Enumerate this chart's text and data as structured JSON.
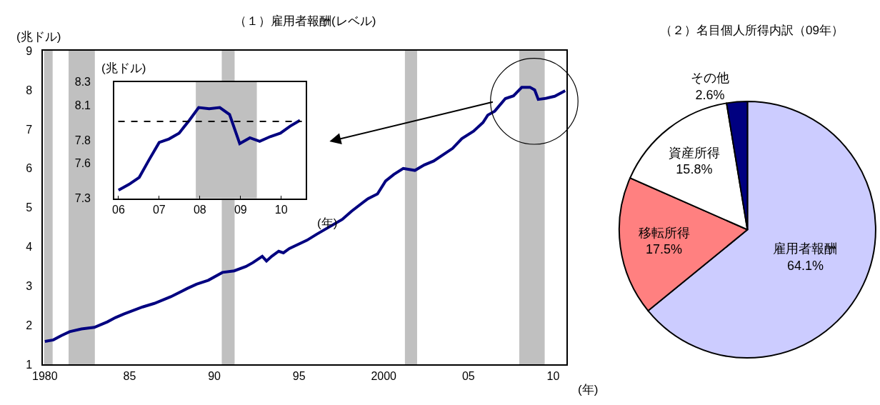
{
  "chart_data": [
    {
      "type": "line",
      "title": "（１）雇用者報酬(レベル)",
      "ylabel": "(兆ドル)",
      "xlabel": "(年)",
      "x": [
        1980.0,
        1980.5,
        1980.98,
        1981.46,
        1982.16,
        1982.92,
        1983.69,
        1984.17,
        1984.66,
        1985.77,
        1986.46,
        1987.43,
        1988.4,
        1988.95,
        1989.65,
        1990.48,
        1991.17,
        1991.86,
        1992.28,
        1992.83,
        1993.08,
        1993.39,
        1993.8,
        1994.08,
        1994.43,
        1995.47,
        1996.03,
        1997.55,
        1998.1,
        1999.07,
        1999.63,
        2000.11,
        2000.6,
        2001.15,
        2001.84,
        2002.4,
        2002.95,
        2004.06,
        2004.61,
        2005.3,
        2005.86,
        2006.14,
        2006.55,
        2007.18,
        2007.66,
        2008.15,
        2008.63,
        2008.91,
        2009.12,
        2009.6,
        2010.09,
        2010.71
      ],
      "series": [
        {
          "color": "#000080",
          "values": [
            1.59,
            1.63,
            1.74,
            1.84,
            1.91,
            1.95,
            2.09,
            2.2,
            2.29,
            2.47,
            2.56,
            2.73,
            2.94,
            3.05,
            3.15,
            3.35,
            3.39,
            3.5,
            3.6,
            3.76,
            3.64,
            3.76,
            3.89,
            3.85,
            3.96,
            4.17,
            4.32,
            4.7,
            4.91,
            5.23,
            5.35,
            5.68,
            5.85,
            6.0,
            5.95,
            6.09,
            6.19,
            6.51,
            6.76,
            6.95,
            7.17,
            7.36,
            7.46,
            7.78,
            7.85,
            8.07,
            8.07,
            8.0,
            7.76,
            7.79,
            7.84,
            7.98
          ]
        }
      ],
      "xlim": [
        1979.9,
        2010.8
      ],
      "xticks": [
        1980,
        {
          "value": 1985,
          "label": "85"
        },
        {
          "value": 1990,
          "label": "90"
        },
        {
          "value": 1995,
          "label": "95"
        },
        2000,
        {
          "value": 2005,
          "label": "05"
        },
        {
          "value": 2010,
          "label": "10"
        }
      ],
      "ylim": [
        1,
        9
      ],
      "yticks": [
        1,
        2,
        3,
        4,
        5,
        6,
        7,
        8,
        9
      ],
      "bands": [
        {
          "axis": "x",
          "from": 1979.95,
          "to": 1980.46,
          "color": "#c0c0c0"
        },
        {
          "axis": "x",
          "from": 1981.4,
          "to": 1982.95,
          "color": "#c0c0c0"
        },
        {
          "axis": "x",
          "from": 1990.44,
          "to": 1991.2,
          "color": "#c0c0c0"
        },
        {
          "axis": "x",
          "from": 2001.25,
          "to": 2001.97,
          "color": "#c0c0c0"
        },
        {
          "axis": "x",
          "from": 2008.0,
          "to": 2009.5,
          "color": "#c0c0c0"
        }
      ],
      "grid": false
    },
    {
      "type": "line",
      "ylabel": "(兆ドル)",
      "xlabel": "(年)",
      "x": [
        2006.0,
        2006.26,
        2006.51,
        2006.75,
        2007.0,
        2007.24,
        2007.49,
        2007.74,
        2007.97,
        2008.23,
        2008.49,
        2008.73,
        2008.98,
        2009.23,
        2009.47,
        2009.73,
        2009.98,
        2010.22,
        2010.46
      ],
      "series": [
        {
          "color": "#000080",
          "values": [
            7.37,
            7.42,
            7.48,
            7.63,
            7.78,
            7.81,
            7.86,
            7.97,
            8.08,
            8.07,
            8.08,
            8.02,
            7.77,
            7.82,
            7.79,
            7.83,
            7.86,
            7.92,
            7.97
          ]
        }
      ],
      "xlim": [
        2005.9,
        2010.6
      ],
      "xticks": [
        {
          "value": 2006,
          "label": "06"
        },
        {
          "value": 2007,
          "label": "07"
        },
        {
          "value": 2008,
          "label": "08"
        },
        {
          "value": 2009,
          "label": "09"
        },
        {
          "value": 2010,
          "label": "10"
        }
      ],
      "ylim": [
        7.3,
        8.3
      ],
      "yticks": [
        7.3,
        7.6,
        7.8,
        8.1,
        8.3
      ],
      "bands": [
        {
          "axis": "x",
          "from": 2007.9,
          "to": 2009.4,
          "color": "#c0c0c0"
        }
      ],
      "ref_lines": [
        {
          "axis": "y",
          "value": 7.96,
          "color": "#000000",
          "line_style": "dashed"
        }
      ],
      "grid": false
    },
    {
      "type": "pie",
      "title": "（２）名目個人所得内訳（09年）",
      "categories": [
        "雇用者報酬",
        "移転所得",
        "資産所得",
        "その他"
      ],
      "values": [
        64.1,
        17.5,
        15.8,
        2.6
      ],
      "colors": [
        "#ccccff",
        "#ff8080",
        "#ffffff",
        "#000080"
      ],
      "value_labels": [
        "64.1%",
        "17.5%",
        "15.8%",
        "2.6%"
      ]
    }
  ]
}
